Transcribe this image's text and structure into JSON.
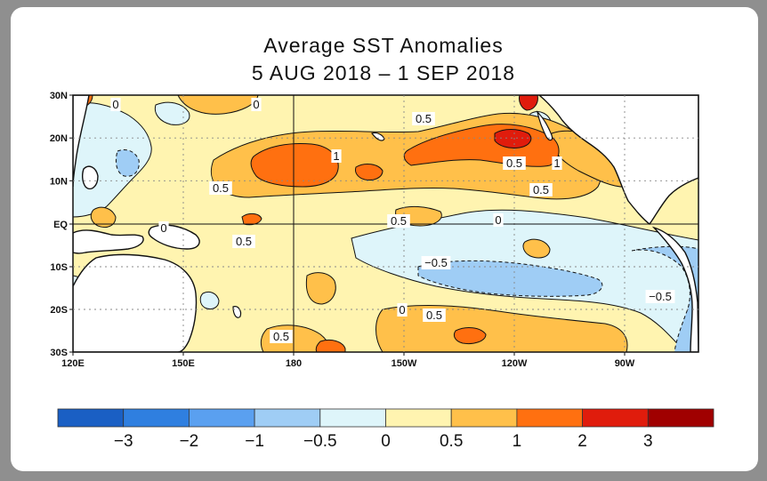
{
  "title": {
    "line1": "Average SST Anomalies",
    "line2": "5 AUG 2018 – 1 SEP 2018"
  },
  "axes": {
    "lat_labels": [
      "30N",
      "20N",
      "10N",
      "EQ",
      "10S",
      "20S",
      "30S"
    ],
    "lon_labels": [
      "120E",
      "150E",
      "180",
      "150W",
      "120W",
      "90W"
    ]
  },
  "contour_labels": [
    "0",
    "0",
    "0.5",
    "1",
    "0.5",
    "0",
    "0.5",
    "0.5",
    "1",
    "0.5",
    "0",
    "0.5",
    "−0.5",
    "0",
    "0.5",
    "0.5",
    "−0.5"
  ],
  "colorbar": {
    "colors": [
      "#1a5fc4",
      "#2f7fe0",
      "#5aa0f0",
      "#9fcdf5",
      "#def5fa",
      "#fff4b0",
      "#ffc04a",
      "#ff7010",
      "#e01c0c",
      "#a00000"
    ],
    "labels": [
      "−3",
      "−2",
      "−1",
      "−0.5",
      "0",
      "0.5",
      "1",
      "2",
      "3"
    ]
  },
  "palette": {
    "land": "#ffffff",
    "neg05": "#def5fa",
    "neg1": "#9fcdf5",
    "pos0": "#fff4b0",
    "pos05": "#ffc04a",
    "pos1": "#ff7010",
    "pos2": "#e01c0c"
  }
}
